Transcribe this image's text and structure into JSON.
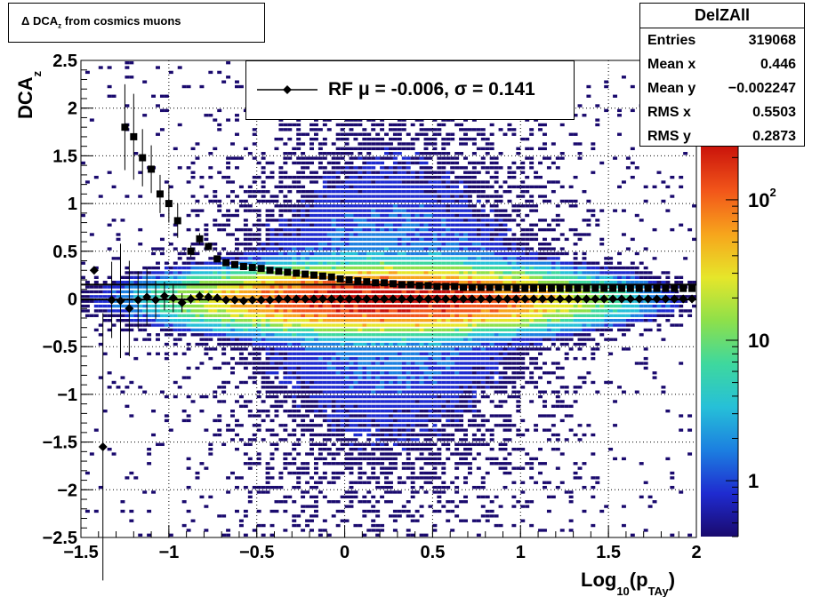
{
  "title": {
    "delta": "Δ",
    "main": "DCA",
    "sub": "z",
    "rest": "from cosmics muons"
  },
  "stats": {
    "name": "DelZAll",
    "rows": [
      {
        "label": "Entries",
        "value": "319068"
      },
      {
        "label": "Mean x",
        "value": "0.446"
      },
      {
        "label": "Mean y",
        "value": "−0.002247"
      },
      {
        "label": "RMS x",
        "value": "0.5503"
      },
      {
        "label": "RMS y",
        "value": "0.2873"
      }
    ]
  },
  "legend": {
    "label": "RF μ = -0.006, σ =   0.141"
  },
  "colorbar": {
    "scale": "log",
    "range": [
      0.4,
      250
    ],
    "labels": [
      {
        "text": "1",
        "value": 1
      },
      {
        "text": "10",
        "value": 10
      },
      {
        "text": "10",
        "sup": "2",
        "value": 100
      }
    ],
    "palette": [
      "#1a0a6e",
      "#1f2bd0",
      "#1c7fe0",
      "#26c0d8",
      "#3ed89e",
      "#8ee04a",
      "#e6e62a",
      "#f7a51c",
      "#f2561a",
      "#c8100a"
    ]
  },
  "chart_data": {
    "type": "scatter",
    "xlabel": "Log",
    "xlabel_sub": "10",
    "xlabel_paren": "(p",
    "xlabel_sub2": "TAy",
    "xlabel_close": ")",
    "ylabel": "DCA",
    "ylabel_sub": "z",
    "xlim": [
      -1.5,
      2
    ],
    "ylim": [
      -2.5,
      2.5
    ],
    "grid": true,
    "xticks": [
      {
        "v": -1.5,
        "t": "−1.5"
      },
      {
        "v": -1,
        "t": "−1"
      },
      {
        "v": -0.5,
        "t": "−0.5"
      },
      {
        "v": 0,
        "t": "0"
      },
      {
        "v": 0.5,
        "t": "0.5"
      },
      {
        "v": 1,
        "t": "1"
      },
      {
        "v": 1.5,
        "t": "1.5"
      },
      {
        "v": 2,
        "t": "2"
      }
    ],
    "yticks": [
      {
        "v": 2.5,
        "t": "2.5"
      },
      {
        "v": 2,
        "t": "2"
      },
      {
        "v": 1.5,
        "t": "1.5"
      },
      {
        "v": 1,
        "t": "1"
      },
      {
        "v": 0.5,
        "t": "0.5"
      },
      {
        "v": 0,
        "t": "0"
      },
      {
        "v": -0.5,
        "t": "−0.5"
      },
      {
        "v": -1,
        "t": "−1"
      },
      {
        "v": -1.5,
        "t": "−1.5"
      },
      {
        "v": -2,
        "t": "−2"
      },
      {
        "v": -2.5,
        "t": "−2.5"
      }
    ],
    "density_2d": {
      "x_center": 0.25,
      "x_sigma": 0.5,
      "y_center": 0.0,
      "y_sigma": 0.14,
      "peak_count": 200
    },
    "series": [
      {
        "marker": "square",
        "color": "#000000",
        "points": [
          {
            "x": -1.25,
            "y": 1.8,
            "err": 0.45
          },
          {
            "x": -1.2,
            "y": 1.7,
            "err": 0.45
          },
          {
            "x": -1.15,
            "y": 1.48,
            "err": 0.3
          },
          {
            "x": -1.1,
            "y": 1.36,
            "err": 0.25
          },
          {
            "x": -1.05,
            "y": 1.1,
            "err": 0.2
          },
          {
            "x": -1.0,
            "y": 1.0,
            "err": 0.2
          },
          {
            "x": -0.95,
            "y": 0.82,
            "err": 0.18
          },
          {
            "x": -0.875,
            "y": 0.5,
            "err": 0.06
          },
          {
            "x": -0.825,
            "y": 0.63,
            "err": 0.06
          },
          {
            "x": -0.775,
            "y": 0.55,
            "err": 0.04
          },
          {
            "x": -0.725,
            "y": 0.42,
            "err": 0.02
          },
          {
            "x": -0.675,
            "y": 0.38,
            "err": 0.01
          },
          {
            "x": -0.625,
            "y": 0.36,
            "err": 0.01
          },
          {
            "x": -0.575,
            "y": 0.34,
            "err": 0.01
          },
          {
            "x": -0.525,
            "y": 0.33,
            "err": 0.01
          },
          {
            "x": -0.475,
            "y": 0.32,
            "err": 0.01
          },
          {
            "x": -0.425,
            "y": 0.3,
            "err": 0.01
          },
          {
            "x": -0.375,
            "y": 0.29,
            "err": 0.01
          },
          {
            "x": -0.325,
            "y": 0.28,
            "err": 0.01
          },
          {
            "x": -0.275,
            "y": 0.27,
            "err": 0.01
          },
          {
            "x": -0.225,
            "y": 0.26,
            "err": 0.01
          },
          {
            "x": -0.175,
            "y": 0.25,
            "err": 0.01
          },
          {
            "x": -0.125,
            "y": 0.24,
            "err": 0.01
          },
          {
            "x": -0.075,
            "y": 0.23,
            "err": 0.01
          },
          {
            "x": -0.025,
            "y": 0.21,
            "err": 0.01
          },
          {
            "x": 0.025,
            "y": 0.2,
            "err": 0.01
          },
          {
            "x": 0.075,
            "y": 0.19,
            "err": 0.01
          },
          {
            "x": 0.125,
            "y": 0.18,
            "err": 0.01
          },
          {
            "x": 0.175,
            "y": 0.17,
            "err": 0.01
          },
          {
            "x": 0.225,
            "y": 0.17,
            "err": 0.01
          },
          {
            "x": 0.275,
            "y": 0.16,
            "err": 0.01
          },
          {
            "x": 0.325,
            "y": 0.15,
            "err": 0.01
          },
          {
            "x": 0.375,
            "y": 0.15,
            "err": 0.01
          },
          {
            "x": 0.425,
            "y": 0.14,
            "err": 0.01
          },
          {
            "x": 0.475,
            "y": 0.14,
            "err": 0.01
          },
          {
            "x": 0.525,
            "y": 0.13,
            "err": 0.01
          },
          {
            "x": 0.575,
            "y": 0.13,
            "err": 0.01
          },
          {
            "x": 0.625,
            "y": 0.13,
            "err": 0.01
          },
          {
            "x": 0.675,
            "y": 0.12,
            "err": 0.01
          },
          {
            "x": 0.725,
            "y": 0.12,
            "err": 0.01
          },
          {
            "x": 0.775,
            "y": 0.12,
            "err": 0.01
          },
          {
            "x": 0.825,
            "y": 0.12,
            "err": 0.01
          },
          {
            "x": 0.875,
            "y": 0.12,
            "err": 0.01
          },
          {
            "x": 0.925,
            "y": 0.12,
            "err": 0.01
          },
          {
            "x": 0.975,
            "y": 0.11,
            "err": 0.01
          },
          {
            "x": 1.025,
            "y": 0.11,
            "err": 0.01
          },
          {
            "x": 1.075,
            "y": 0.11,
            "err": 0.01
          },
          {
            "x": 1.125,
            "y": 0.11,
            "err": 0.01
          },
          {
            "x": 1.175,
            "y": 0.11,
            "err": 0.01
          },
          {
            "x": 1.225,
            "y": 0.11,
            "err": 0.01
          },
          {
            "x": 1.275,
            "y": 0.11,
            "err": 0.01
          },
          {
            "x": 1.325,
            "y": 0.11,
            "err": 0.01
          },
          {
            "x": 1.375,
            "y": 0.11,
            "err": 0.01
          },
          {
            "x": 1.425,
            "y": 0.11,
            "err": 0.01
          },
          {
            "x": 1.475,
            "y": 0.11,
            "err": 0.01
          },
          {
            "x": 1.525,
            "y": 0.11,
            "err": 0.01
          },
          {
            "x": 1.575,
            "y": 0.11,
            "err": 0.01
          },
          {
            "x": 1.625,
            "y": 0.11,
            "err": 0.01
          },
          {
            "x": 1.675,
            "y": 0.11,
            "err": 0.01
          },
          {
            "x": 1.725,
            "y": 0.11,
            "err": 0.01
          },
          {
            "x": 1.775,
            "y": 0.11,
            "err": 0.01
          },
          {
            "x": 1.825,
            "y": 0.11,
            "err": 0.01
          },
          {
            "x": 1.875,
            "y": 0.11,
            "err": 0.01
          },
          {
            "x": 1.925,
            "y": 0.11,
            "err": 0.01
          },
          {
            "x": 1.975,
            "y": 0.11,
            "err": 0.01
          }
        ]
      },
      {
        "marker": "diamond",
        "color": "#000000",
        "points": [
          {
            "x": -1.425,
            "y": 0.3,
            "err": 0.0
          },
          {
            "x": -1.375,
            "y": -1.55,
            "err": 1.4
          },
          {
            "x": -1.325,
            "y": -0.01,
            "err": 0.4
          },
          {
            "x": -1.275,
            "y": -0.02,
            "err": 0.6
          },
          {
            "x": -1.225,
            "y": -0.1,
            "err": 0.5
          },
          {
            "x": -1.175,
            "y": -0.01,
            "err": 0.3
          },
          {
            "x": -1.125,
            "y": 0.02,
            "err": 0.3
          },
          {
            "x": -1.075,
            "y": -0.01,
            "err": 0.2
          },
          {
            "x": -1.025,
            "y": 0.03,
            "err": 0.15
          },
          {
            "x": -0.975,
            "y": 0.01,
            "err": 0.15
          },
          {
            "x": -0.925,
            "y": -0.04,
            "err": 0.1
          },
          {
            "x": -0.875,
            "y": 0.0,
            "err": 0.05
          },
          {
            "x": -0.825,
            "y": 0.03,
            "err": 0.05
          },
          {
            "x": -0.775,
            "y": 0.02,
            "err": 0.03
          },
          {
            "x": -0.725,
            "y": 0.01,
            "err": 0.02
          },
          {
            "x": -0.675,
            "y": -0.01,
            "err": 0.01
          },
          {
            "x": -0.625,
            "y": -0.01,
            "err": 0.01
          },
          {
            "x": -0.575,
            "y": -0.02,
            "err": 0.01
          },
          {
            "x": -0.525,
            "y": -0.01,
            "err": 0.01
          },
          {
            "x": -0.475,
            "y": -0.01,
            "err": 0.01
          },
          {
            "x": -0.425,
            "y": -0.01,
            "err": 0.01
          },
          {
            "x": -0.375,
            "y": 0.0,
            "err": 0.01
          },
          {
            "x": -0.325,
            "y": 0.0,
            "err": 0.01
          },
          {
            "x": -0.275,
            "y": 0.0,
            "err": 0.01
          },
          {
            "x": -0.225,
            "y": 0.0,
            "err": 0.01
          },
          {
            "x": -0.175,
            "y": 0.0,
            "err": 0.01
          },
          {
            "x": -0.125,
            "y": 0.0,
            "err": 0.01
          },
          {
            "x": -0.075,
            "y": 0.0,
            "err": 0.01
          },
          {
            "x": -0.025,
            "y": 0.0,
            "err": 0.01
          },
          {
            "x": 0.025,
            "y": 0.0,
            "err": 0.01
          },
          {
            "x": 0.075,
            "y": 0.0,
            "err": 0.01
          },
          {
            "x": 0.125,
            "y": 0.0,
            "err": 0.01
          },
          {
            "x": 0.175,
            "y": 0.0,
            "err": 0.01
          },
          {
            "x": 0.225,
            "y": 0.0,
            "err": 0.01
          },
          {
            "x": 0.275,
            "y": 0.0,
            "err": 0.01
          },
          {
            "x": 0.325,
            "y": 0.0,
            "err": 0.01
          },
          {
            "x": 0.375,
            "y": 0.0,
            "err": 0.01
          },
          {
            "x": 0.425,
            "y": 0.0,
            "err": 0.01
          },
          {
            "x": 0.475,
            "y": 0.0,
            "err": 0.01
          },
          {
            "x": 0.525,
            "y": 0.0,
            "err": 0.01
          },
          {
            "x": 0.575,
            "y": 0.0,
            "err": 0.01
          },
          {
            "x": 0.625,
            "y": 0.0,
            "err": 0.01
          },
          {
            "x": 0.675,
            "y": 0.0,
            "err": 0.01
          },
          {
            "x": 0.725,
            "y": 0.0,
            "err": 0.01
          },
          {
            "x": 0.775,
            "y": 0.0,
            "err": 0.01
          },
          {
            "x": 0.825,
            "y": 0.0,
            "err": 0.01
          },
          {
            "x": 0.875,
            "y": 0.0,
            "err": 0.01
          },
          {
            "x": 0.925,
            "y": 0.0,
            "err": 0.01
          },
          {
            "x": 0.975,
            "y": 0.0,
            "err": 0.01
          },
          {
            "x": 1.025,
            "y": 0.0,
            "err": 0.01
          },
          {
            "x": 1.075,
            "y": 0.0,
            "err": 0.01
          },
          {
            "x": 1.125,
            "y": 0.0,
            "err": 0.01
          },
          {
            "x": 1.175,
            "y": 0.0,
            "err": 0.01
          },
          {
            "x": 1.225,
            "y": 0.0,
            "err": 0.01
          },
          {
            "x": 1.275,
            "y": 0.0,
            "err": 0.01
          },
          {
            "x": 1.325,
            "y": 0.0,
            "err": 0.01
          },
          {
            "x": 1.375,
            "y": 0.0,
            "err": 0.01
          },
          {
            "x": 1.425,
            "y": 0.0,
            "err": 0.01
          },
          {
            "x": 1.475,
            "y": 0.0,
            "err": 0.01
          },
          {
            "x": 1.525,
            "y": 0.0,
            "err": 0.01
          },
          {
            "x": 1.575,
            "y": 0.0,
            "err": 0.01
          },
          {
            "x": 1.625,
            "y": 0.0,
            "err": 0.01
          },
          {
            "x": 1.675,
            "y": 0.0,
            "err": 0.01
          },
          {
            "x": 1.725,
            "y": 0.0,
            "err": 0.01
          },
          {
            "x": 1.775,
            "y": 0.0,
            "err": 0.01
          },
          {
            "x": 1.825,
            "y": 0.0,
            "err": 0.01
          },
          {
            "x": 1.875,
            "y": 0.0,
            "err": 0.01
          },
          {
            "x": 1.925,
            "y": 0.0,
            "err": 0.01
          },
          {
            "x": 1.975,
            "y": 0.0,
            "err": 0.01
          }
        ]
      }
    ],
    "reference_lines": [
      {
        "y": 0.15
      },
      {
        "y": -0.006
      }
    ]
  }
}
